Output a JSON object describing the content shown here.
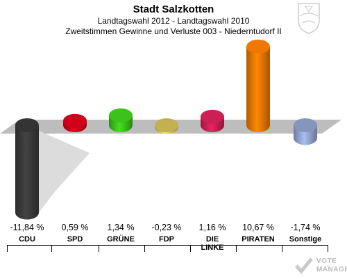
{
  "header": {
    "title": "Stadt Salzkotten",
    "subtitle1": "Landtagswahl 2012 - Landtagswahl 2010",
    "subtitle2": "Zweitstimmen Gewinne und Verluste 003 - Niederntudorf II"
  },
  "logo": {
    "line1": "VOTE",
    "line2": "MANAGER"
  },
  "chart_data": {
    "type": "bar",
    "title": "Zweitstimmen Gewinne und Verluste 003 - Niederntudorf II",
    "categories": [
      "CDU",
      "SPD",
      "GRÜNE",
      "FDP",
      "DIE LINKE",
      "PIRATEN",
      "Sonstige"
    ],
    "value_labels": [
      "-11,84 %",
      "0,59 %",
      "1,34 %",
      "-0,23 %",
      "1,16 %",
      "10,67 %",
      "-1,74 %"
    ],
    "values": [
      -11.84,
      0.59,
      1.34,
      -0.23,
      1.16,
      10.67,
      -1.74
    ],
    "colors": [
      "#3a3a3a",
      "#d0021b",
      "#3cc21a",
      "#d8c45a",
      "#cc1f55",
      "#f07800",
      "#94a6d2"
    ],
    "unit": "%",
    "grid": false,
    "legend": "none"
  }
}
